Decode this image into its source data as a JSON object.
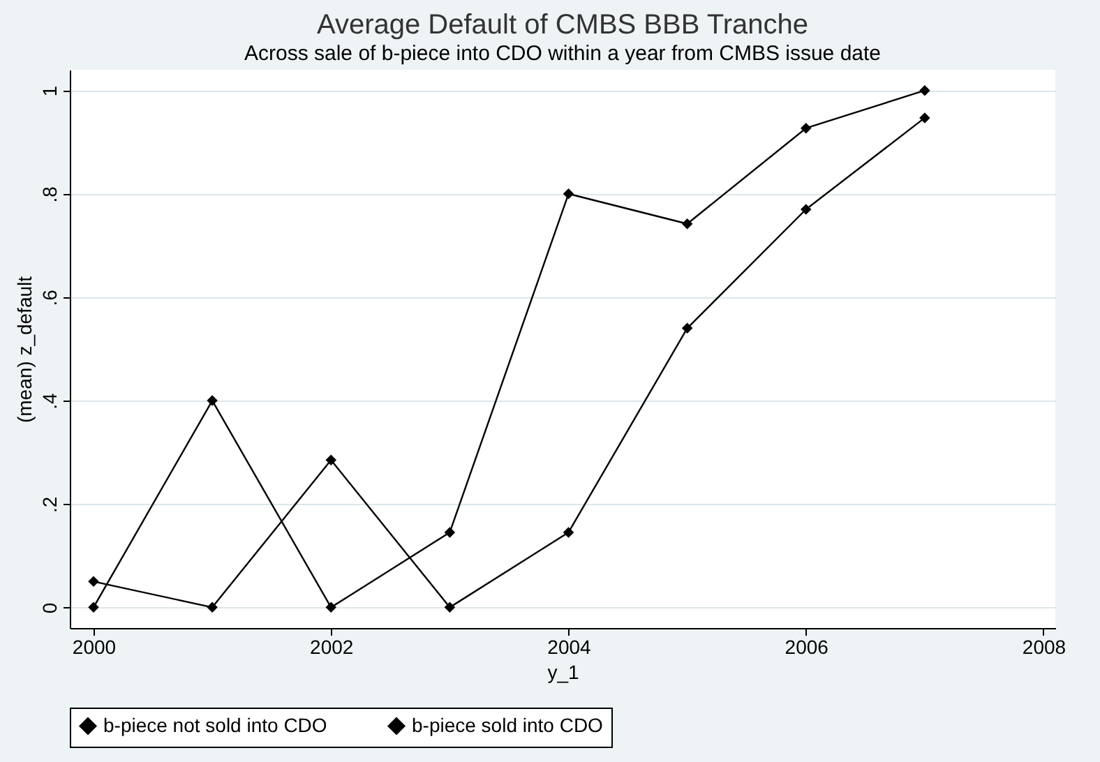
{
  "chart_data": {
    "type": "line",
    "title": "Average Default of CMBS BBB Tranche",
    "subtitle": "Across sale of b-piece into CDO within a year from CMBS issue date",
    "xlabel": "y_1",
    "ylabel": "(mean) z_default",
    "x": [
      2000,
      2001,
      2002,
      2003,
      2004,
      2005,
      2006,
      2007
    ],
    "series": [
      {
        "name": "b-piece not sold into CDO",
        "color": "#000000",
        "values": [
          0.05,
          0,
          0.285,
          0,
          0.145,
          0.54,
          0.77,
          0.947
        ]
      },
      {
        "name": "b-piece sold into CDO",
        "color": "#000000",
        "values": [
          0,
          0.4,
          0,
          0.145,
          0.8,
          0.742,
          0.927,
          1
        ]
      }
    ],
    "xlim": [
      1999.8,
      2008.1
    ],
    "xticks": [
      2000,
      2002,
      2004,
      2006,
      2008
    ],
    "ylim": [
      -0.04,
      1.04
    ],
    "yticks": [
      0,
      {
        "value": 0.2,
        "label": ".2"
      },
      {
        "value": 0.4,
        "label": ".4"
      },
      {
        "value": 0.6,
        "label": ".6"
      },
      {
        "value": 0.8,
        "label": ".8"
      },
      1
    ],
    "grid": "y",
    "legend": "bottom",
    "marker": "diamond",
    "line_style": "solid"
  }
}
